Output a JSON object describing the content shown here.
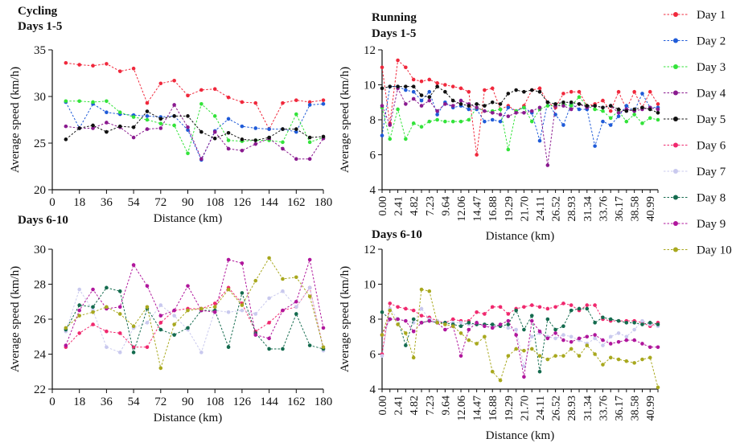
{
  "legend": [
    {
      "name": "Day 1",
      "color": "#f0283c"
    },
    {
      "name": "Day 2",
      "color": "#1f5bd8"
    },
    {
      "name": "Day 3",
      "color": "#33e33a"
    },
    {
      "name": "Day 4",
      "color": "#8a1a8f"
    },
    {
      "name": "Day 5",
      "color": "#111111"
    },
    {
      "name": "Day 6",
      "color": "#f0286e"
    },
    {
      "name": "Day 7",
      "color": "#c9c9ee"
    },
    {
      "name": "Day 8",
      "color": "#146b4e"
    },
    {
      "name": "Day 9",
      "color": "#b0169c"
    },
    {
      "name": "Day 10",
      "color": "#a8a81e"
    }
  ],
  "chart_data": [
    {
      "type": "line",
      "title": "Cycling",
      "subtitle": "Days 1-5",
      "xlabel": "Distance (km)",
      "ylabel": "Average speed (km/h)",
      "xlim": [
        0,
        180
      ],
      "ylim": [
        20,
        35
      ],
      "xticks": [
        "0",
        "18",
        "36",
        "54",
        "72",
        "90",
        "108",
        "126",
        "144",
        "162",
        "180"
      ],
      "yticks": [
        "20",
        "25",
        "30",
        "35"
      ],
      "x": [
        9,
        18,
        27,
        36,
        45,
        54,
        63,
        72,
        81,
        90,
        99,
        108,
        117,
        126,
        135,
        144,
        153,
        162,
        171,
        180
      ],
      "series": [
        {
          "name": "Day 1",
          "values": [
            33.6,
            33.4,
            33.3,
            33.5,
            32.7,
            33.0,
            29.3,
            31.4,
            31.7,
            30.1,
            30.7,
            30.8,
            29.9,
            29.4,
            29.3,
            26.5,
            29.3,
            29.6,
            29.4,
            29.6
          ]
        },
        {
          "name": "Day 2",
          "values": [
            29.4,
            26.6,
            29.2,
            28.3,
            28.1,
            28.0,
            27.9,
            27.8,
            27.9,
            26.4,
            23.2,
            26.3,
            27.6,
            26.8,
            26.6,
            26.5,
            26.5,
            26.2,
            29.1,
            29.2
          ]
        },
        {
          "name": "Day 3",
          "values": [
            29.5,
            29.5,
            29.4,
            29.5,
            28.3,
            27.8,
            27.5,
            27.1,
            26.9,
            23.9,
            29.2,
            27.9,
            25.3,
            25.2,
            25.3,
            25.3,
            25.1,
            28.1,
            25.1,
            25.6
          ]
        },
        {
          "name": "Day 4",
          "values": [
            26.8,
            26.6,
            26.6,
            27.2,
            26.7,
            25.6,
            26.5,
            26.6,
            29.1,
            26.7,
            23.3,
            26.2,
            24.4,
            24.2,
            24.9,
            25.5,
            24.4,
            23.3,
            23.3,
            25.5
          ]
        },
        {
          "name": "Day 5",
          "values": [
            25.4,
            26.6,
            26.9,
            26.2,
            26.8,
            26.7,
            28.4,
            27.6,
            27.9,
            27.9,
            26.2,
            25.5,
            26.1,
            25.4,
            25.3,
            25.6,
            26.5,
            26.5,
            25.6,
            25.7
          ]
        }
      ]
    },
    {
      "type": "line",
      "title": "Running",
      "subtitle": "Days 1-5",
      "xlabel": "Distance (km)",
      "ylabel": "Average speed (km/h)",
      "xlim": [
        0,
        42.19
      ],
      "ylim": [
        4,
        12
      ],
      "xticks": [
        "0.00",
        "2.41",
        "4.82",
        "7.23",
        "9.64",
        "12.06",
        "14.47",
        "16.88",
        "19.29",
        "21.70",
        "24.11",
        "26.52",
        "28.93",
        "31.34",
        "33.76",
        "36.17",
        "38.58",
        "40.99"
      ],
      "x": [
        0.0,
        1.2,
        2.41,
        3.61,
        4.82,
        6.03,
        7.23,
        8.44,
        9.64,
        10.85,
        12.06,
        13.26,
        14.47,
        15.67,
        16.88,
        18.09,
        19.29,
        20.5,
        21.7,
        22.91,
        24.11,
        25.32,
        26.52,
        27.73,
        28.93,
        30.14,
        31.34,
        32.55,
        33.76,
        34.96,
        36.17,
        37.37,
        38.58,
        39.79,
        40.99,
        42.19
      ],
      "series": [
        {
          "name": "Day 1",
          "values": [
            11.0,
            7.8,
            11.4,
            11.0,
            10.3,
            10.2,
            10.3,
            10.1,
            10.0,
            9.9,
            9.8,
            9.6,
            6.0,
            9.7,
            9.8,
            8.6,
            8.8,
            8.5,
            8.8,
            9.7,
            9.8,
            9.0,
            8.7,
            9.5,
            9.6,
            9.6,
            8.8,
            8.9,
            9.1,
            8.5,
            9.6,
            8.6,
            9.6,
            8.7,
            9.6,
            8.9
          ]
        },
        {
          "name": "Day 2",
          "values": [
            7.1,
            9.9,
            9.9,
            9.7,
            9.6,
            9.1,
            9.6,
            8.3,
            9.0,
            8.7,
            8.8,
            8.6,
            8.6,
            7.9,
            8.0,
            7.9,
            8.7,
            8.5,
            8.7,
            8.4,
            6.8,
            9.0,
            8.3,
            7.7,
            8.9,
            8.6,
            8.6,
            6.5,
            7.9,
            7.7,
            8.2,
            8.8,
            8.5,
            9.5,
            8.7,
            8.7
          ]
        },
        {
          "name": "Day 3",
          "values": [
            8.7,
            6.9,
            8.6,
            6.9,
            7.8,
            7.6,
            7.9,
            8.0,
            7.9,
            7.9,
            7.9,
            8.0,
            8.7,
            8.5,
            8.5,
            8.6,
            6.3,
            8.5,
            8.7,
            7.9,
            8.6,
            8.8,
            8.8,
            8.9,
            8.8,
            9.3,
            8.8,
            8.6,
            8.5,
            8.1,
            8.5,
            7.9,
            8.3,
            7.8,
            8.1,
            8.0
          ]
        },
        {
          "name": "Day 4",
          "values": [
            8.8,
            7.7,
            9.8,
            8.9,
            9.2,
            8.8,
            9.1,
            8.5,
            8.9,
            8.8,
            9.1,
            8.9,
            8.7,
            8.5,
            8.4,
            8.3,
            8.2,
            8.4,
            8.4,
            8.5,
            8.7,
            5.4,
            8.8,
            8.8,
            8.6,
            8.9,
            8.7,
            8.8,
            8.7,
            8.8,
            8.4,
            8.6,
            8.5,
            8.6,
            8.7,
            8.6
          ]
        },
        {
          "name": "Day 5",
          "values": [
            9.8,
            9.9,
            9.9,
            9.9,
            9.9,
            9.4,
            9.3,
            9.9,
            9.6,
            9.1,
            8.9,
            8.8,
            8.9,
            8.8,
            9.0,
            8.9,
            9.5,
            9.7,
            9.6,
            9.7,
            9.6,
            9.0,
            8.9,
            9.0,
            9.0,
            8.9,
            8.8,
            8.8,
            8.7,
            8.8,
            8.6,
            8.5,
            8.6,
            8.7,
            8.6,
            8.4
          ]
        }
      ]
    },
    {
      "type": "line",
      "title": "Days 6-10",
      "xlabel": "Distance (km)",
      "ylabel": "Average speed (km/h)",
      "xlim": [
        0,
        180
      ],
      "ylim": [
        22,
        30
      ],
      "xticks": [
        "0",
        "18",
        "36",
        "54",
        "72",
        "90",
        "108",
        "126",
        "144",
        "162",
        "180"
      ],
      "yticks": [
        "22",
        "24",
        "26",
        "28",
        "30"
      ],
      "x": [
        9,
        18,
        27,
        36,
        45,
        54,
        63,
        72,
        81,
        90,
        99,
        108,
        117,
        126,
        135,
        144,
        153,
        162,
        171,
        180
      ],
      "series": [
        {
          "name": "Day 6",
          "values": [
            24.4,
            25.2,
            25.7,
            25.3,
            25.2,
            24.4,
            24.4,
            25.8,
            26.5,
            26.6,
            26.6,
            26.9,
            27.8,
            26.9,
            25.3,
            25.8,
            26.5,
            26.7,
            27.8,
            24.3
          ]
        },
        {
          "name": "Day 7",
          "values": [
            25.3,
            27.7,
            26.5,
            24.4,
            24.1,
            25.5,
            25.8,
            26.8,
            26.2,
            25.4,
            24.1,
            26.5,
            26.4,
            26.5,
            26.3,
            27.2,
            27.6,
            26.7,
            27.8,
            24.2
          ]
        },
        {
          "name": "Day 8",
          "values": [
            25.4,
            26.8,
            26.7,
            27.8,
            27.6,
            24.1,
            26.6,
            25.4,
            25.1,
            25.5,
            26.5,
            26.5,
            24.4,
            27.5,
            25.2,
            24.3,
            24.3,
            26.3,
            24.5,
            24.3
          ]
        },
        {
          "name": "Day 9",
          "values": [
            24.5,
            26.5,
            27.7,
            26.6,
            26.7,
            29.1,
            27.9,
            26.2,
            26.5,
            27.9,
            26.5,
            26.4,
            29.4,
            29.2,
            25.1,
            24.9,
            26.5,
            27.0,
            29.4,
            25.5
          ]
        },
        {
          "name": "Day 10",
          "values": [
            25.5,
            26.2,
            26.4,
            26.7,
            26.3,
            25.6,
            26.7,
            23.2,
            25.7,
            26.5,
            26.6,
            26.7,
            27.7,
            26.8,
            28.2,
            29.5,
            28.3,
            28.4,
            27.3,
            24.4
          ]
        }
      ]
    },
    {
      "type": "line",
      "title": "Days 6-10",
      "xlabel": "Distance (km)",
      "ylabel": "Average speed (km/h)",
      "xlim": [
        0,
        42.19
      ],
      "ylim": [
        4,
        12
      ],
      "xticks": [
        "0.00",
        "2.41",
        "4.82",
        "7.23",
        "9.64",
        "12.06",
        "14.47",
        "16.88",
        "19.29",
        "21.70",
        "24.11",
        "26.52",
        "28.93",
        "31.34",
        "33.76",
        "36.17",
        "38.58",
        "40.99"
      ],
      "x": [
        0.0,
        1.2,
        2.41,
        3.61,
        4.82,
        6.03,
        7.23,
        8.44,
        9.64,
        10.85,
        12.06,
        13.26,
        14.47,
        15.67,
        16.88,
        18.09,
        19.29,
        20.5,
        21.7,
        22.91,
        24.11,
        25.32,
        26.52,
        27.73,
        28.93,
        30.14,
        31.34,
        32.55,
        33.76,
        34.96,
        36.17,
        37.37,
        38.58,
        39.79,
        40.99,
        42.19
      ],
      "series": [
        {
          "name": "Day 6",
          "values": [
            6.0,
            8.9,
            8.7,
            8.6,
            8.5,
            8.2,
            8.1,
            7.9,
            7.8,
            8.0,
            7.9,
            7.9,
            8.4,
            8.3,
            8.7,
            8.7,
            8.3,
            8.6,
            8.7,
            8.8,
            8.7,
            8.6,
            8.7,
            8.9,
            8.8,
            8.5,
            8.8,
            8.8,
            8.0,
            7.9,
            7.9,
            7.9,
            7.9,
            7.8,
            7.6,
            7.8
          ]
        },
        {
          "name": "Day 7",
          "values": [
            5.9,
            8.6,
            8.0,
            7.9,
            7.8,
            8.6,
            8.0,
            7.9,
            7.8,
            7.8,
            7.8,
            7.7,
            7.7,
            7.6,
            7.6,
            7.6,
            7.5,
            7.4,
            5.3,
            7.0,
            7.2,
            7.0,
            6.9,
            7.1,
            7.0,
            6.8,
            6.6,
            6.9,
            6.5,
            7.0,
            7.2,
            7.0,
            7.4,
            7.9,
            7.7,
            7.6
          ]
        },
        {
          "name": "Day 8",
          "values": [
            8.4,
            8.0,
            8.0,
            6.5,
            8.0,
            7.8,
            7.9,
            7.8,
            7.8,
            7.7,
            7.6,
            7.8,
            7.7,
            7.7,
            7.7,
            7.6,
            7.7,
            8.5,
            7.4,
            8.2,
            5.0,
            8.0,
            7.4,
            7.6,
            8.5,
            8.6,
            8.6,
            7.8,
            8.1,
            8.0,
            7.9,
            7.8,
            7.8,
            7.7,
            7.8,
            7.7
          ]
        },
        {
          "name": "Day 9",
          "values": [
            7.1,
            8.0,
            8.0,
            7.9,
            7.3,
            7.8,
            7.9,
            7.8,
            7.4,
            7.6,
            5.9,
            7.4,
            7.8,
            7.6,
            7.5,
            7.7,
            7.9,
            7.1,
            4.7,
            7.9,
            7.3,
            6.9,
            7.2,
            6.8,
            6.7,
            6.9,
            7.0,
            7.1,
            6.8,
            6.6,
            6.7,
            6.8,
            6.8,
            6.6,
            6.4,
            6.4
          ]
        },
        {
          "name": "Day 10",
          "values": [
            7.1,
            8.5,
            7.7,
            7.2,
            5.8,
            9.7,
            9.6,
            7.8,
            7.7,
            7.6,
            7.2,
            6.8,
            6.6,
            7.0,
            5.0,
            4.5,
            5.9,
            6.3,
            6.2,
            6.3,
            5.9,
            5.7,
            5.9,
            5.9,
            6.3,
            5.9,
            6.5,
            6.0,
            5.4,
            5.8,
            5.7,
            5.6,
            5.5,
            5.7,
            5.8,
            4.1
          ]
        }
      ]
    }
  ]
}
